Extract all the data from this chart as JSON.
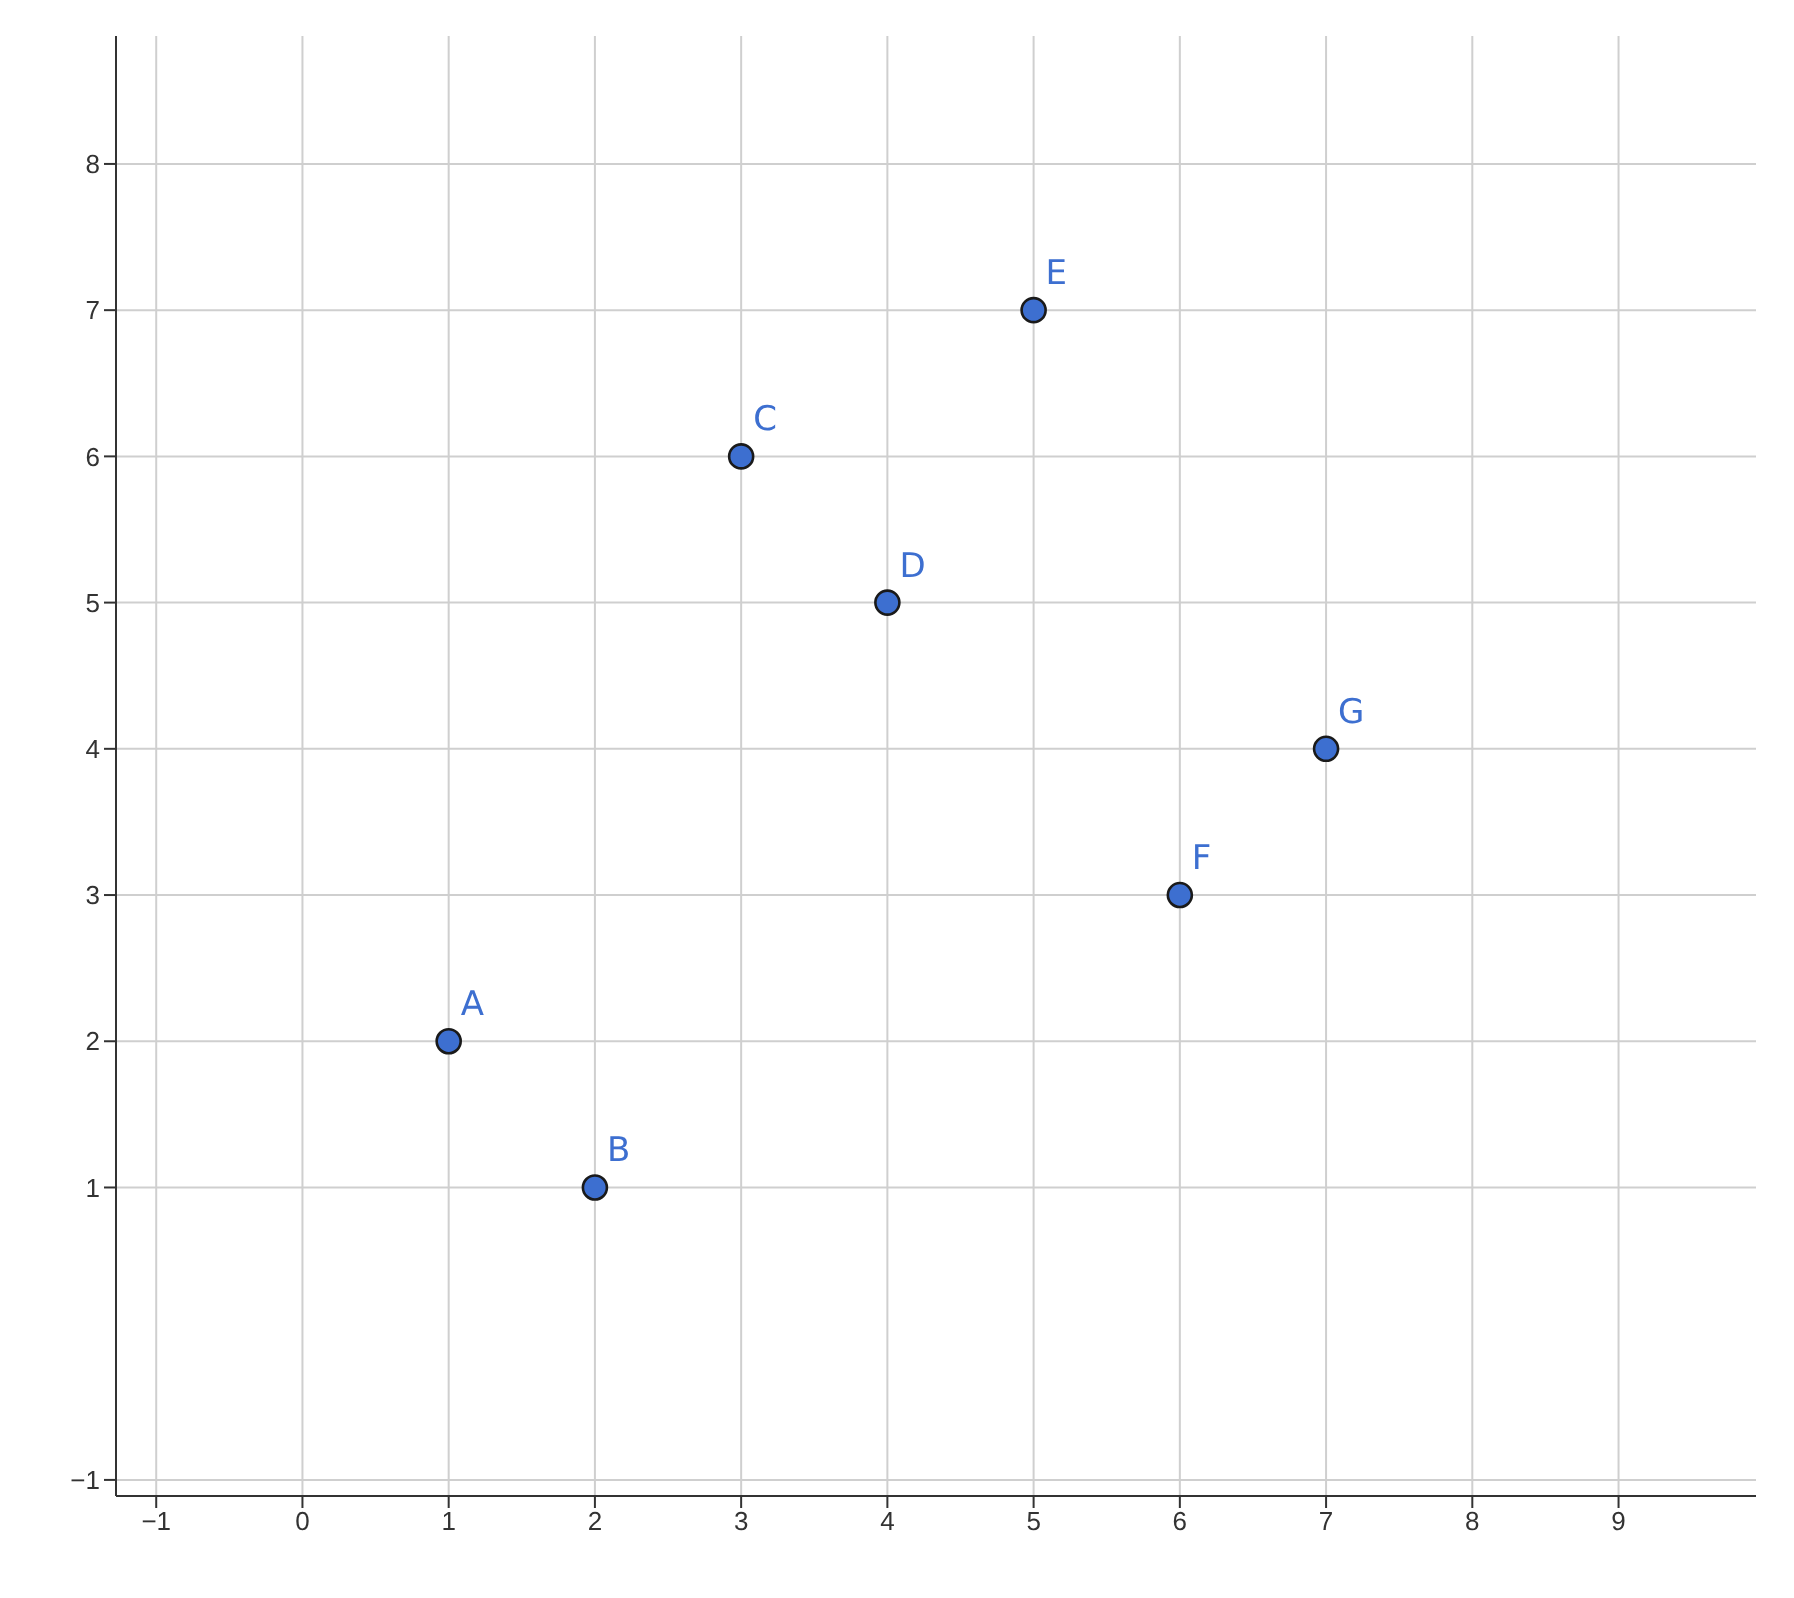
{
  "chart_data": {
    "type": "scatter",
    "x": [
      1,
      2,
      3,
      4,
      5,
      6,
      7
    ],
    "values": [
      2,
      1,
      6,
      5,
      7,
      3,
      4
    ],
    "color": "#3d6fd0",
    "marker": "circle",
    "grid": true,
    "xlim": [
      -1.275,
      9.94
    ],
    "ylim": [
      -1.11,
      8.875
    ],
    "xticks": [
      {
        "value": -1,
        "label": "−1"
      },
      0,
      1,
      2,
      3,
      4,
      5,
      6,
      7,
      8,
      9
    ],
    "yticks": [
      {
        "value": -1,
        "label": "−1"
      },
      1,
      2,
      3,
      4,
      5,
      6,
      7,
      8
    ],
    "annotations": [
      {
        "text": "A",
        "x": 1,
        "y": 2
      },
      {
        "text": "B",
        "x": 2,
        "y": 1
      },
      {
        "text": "C",
        "x": 3,
        "y": 6
      },
      {
        "text": "D",
        "x": 4,
        "y": 5
      },
      {
        "text": "E",
        "x": 5,
        "y": 7
      },
      {
        "text": "F",
        "x": 6,
        "y": 3
      },
      {
        "text": "G",
        "x": 7,
        "y": 4
      }
    ]
  }
}
